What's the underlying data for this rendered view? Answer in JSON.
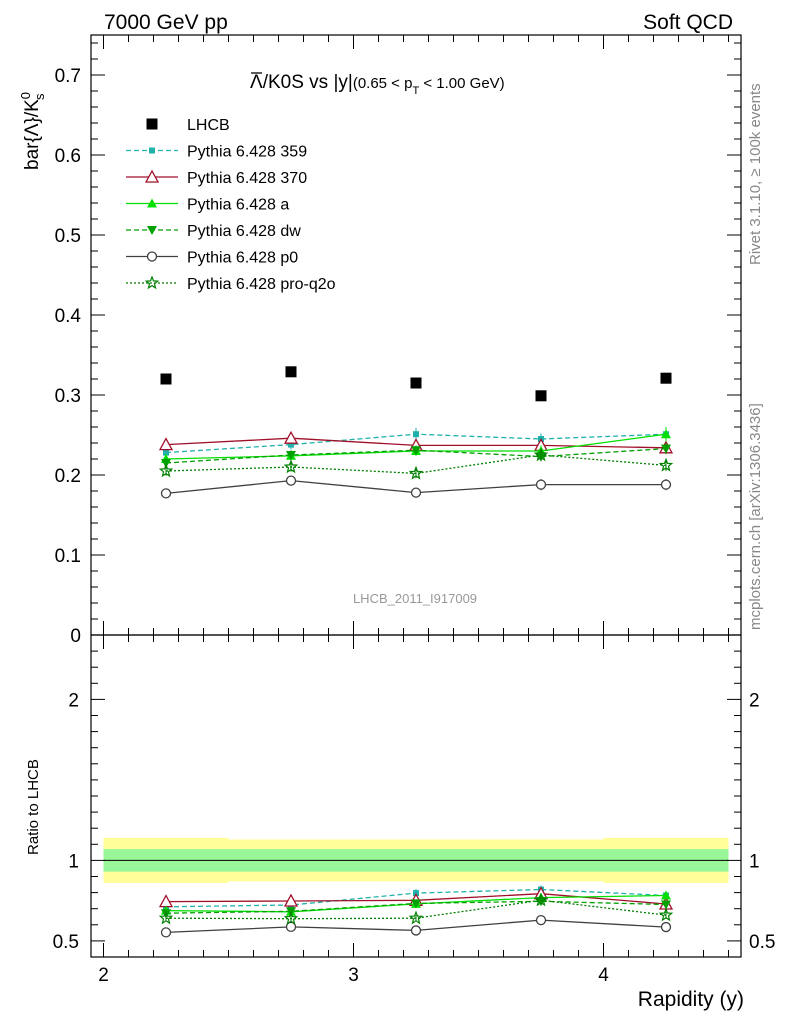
{
  "header": {
    "left": "7000 GeV pp",
    "right": "Soft QCD"
  },
  "side_labels": {
    "rivet": "Rivet 3.1.10, ≥ 100k events",
    "mcplots": "mcplots.cern.ch [arXiv:1306.3436]"
  },
  "chart_data": [
    {
      "type": "line",
      "title": "Λ̅/K0S vs |y|",
      "title_parts": {
        "prefix": "Λ",
        "mid": "/K0S vs |y|",
        "sub_open": "(0.65 < p",
        "sub_T": "T",
        "sub_close": " < 1.00 GeV)"
      },
      "ylabel": "bar{Λ}/K",
      "ylabel_parts": {
        "main": "bar{Λ}/K",
        "sup": "0",
        "sub": "s"
      },
      "watermark": "LHCB_2011_I917009",
      "xlim": [
        1.95,
        4.55
      ],
      "ylim": [
        0,
        0.75
      ],
      "yticks": [
        0,
        0.1,
        0.2,
        0.3,
        0.4,
        0.5,
        0.6,
        0.7
      ],
      "ytick_labels": [
        "0",
        "0.1",
        "0.2",
        "0.3",
        "0.4",
        "0.5",
        "0.6",
        "0.7"
      ],
      "x": [
        2.25,
        2.75,
        3.25,
        3.75,
        4.25
      ],
      "data": {
        "name": "LHCB",
        "y": [
          0.32,
          0.329,
          0.315,
          0.299,
          0.321
        ]
      },
      "series": [
        {
          "name": "Pythia 6.428 359",
          "color": "#20b2aa",
          "marker": "square-small",
          "line": "dashed",
          "y": [
            0.228,
            0.238,
            0.251,
            0.245,
            0.251
          ],
          "err": [
            0.006,
            0.006,
            0.008,
            0.007,
            0.007
          ]
        },
        {
          "name": "Pythia 6.428 370",
          "color": "#a0102a",
          "marker": "triangle-open",
          "line": "solid",
          "y": [
            0.238,
            0.246,
            0.237,
            0.237,
            0.234
          ],
          "err": [
            0.006,
            0.006,
            0.006,
            0.006,
            0.006
          ]
        },
        {
          "name": "Pythia 6.428 a",
          "color": "#00e000",
          "marker": "triangle",
          "line": "solid",
          "y": [
            0.22,
            0.224,
            0.23,
            0.23,
            0.251
          ],
          "err": [
            0.006,
            0.006,
            0.006,
            0.007,
            0.009
          ]
        },
        {
          "name": "Pythia 6.428 dw",
          "color": "#00a000",
          "marker": "triangle-down",
          "line": "dashed",
          "y": [
            0.215,
            0.225,
            0.231,
            0.223,
            0.233
          ],
          "err": [
            0.006,
            0.006,
            0.006,
            0.006,
            0.007
          ]
        },
        {
          "name": "Pythia 6.428 p0",
          "color": "#404040",
          "marker": "circle-open",
          "line": "solid",
          "y": [
            0.177,
            0.193,
            0.178,
            0.188,
            0.188
          ],
          "err": [
            0.006,
            0.006,
            0.006,
            0.007,
            0.007
          ]
        },
        {
          "name": "Pythia 6.428 pro-q2o",
          "color": "#008000",
          "marker": "star",
          "line": "dotted",
          "y": [
            0.205,
            0.21,
            0.202,
            0.225,
            0.212
          ],
          "err": [
            0.006,
            0.006,
            0.006,
            0.007,
            0.007
          ]
        }
      ]
    },
    {
      "type": "line",
      "ylabel": "Ratio to LHCB",
      "xlabel": "Rapidity (y)",
      "xlim": [
        1.95,
        4.55
      ],
      "ylim": [
        0.4,
        2.4
      ],
      "yticks": [
        0.5,
        1,
        2
      ],
      "ytick_labels": [
        "0.5",
        "1",
        "2"
      ],
      "xticks": [
        2,
        3,
        4
      ],
      "xtick_labels": [
        "2",
        "3",
        "4"
      ],
      "bins": [
        [
          2.0,
          2.5
        ],
        [
          2.5,
          3.0
        ],
        [
          3.0,
          3.5
        ],
        [
          3.5,
          4.0
        ],
        [
          4.0,
          4.5
        ]
      ],
      "band_stat": [
        [
          0.93,
          1.07
        ],
        [
          0.93,
          1.07
        ],
        [
          0.93,
          1.07
        ],
        [
          0.93,
          1.07
        ],
        [
          0.93,
          1.07
        ]
      ],
      "band_total": [
        [
          0.86,
          1.14
        ],
        [
          0.87,
          1.13
        ],
        [
          0.87,
          1.13
        ],
        [
          0.87,
          1.13
        ],
        [
          0.86,
          1.14
        ]
      ],
      "x": [
        2.25,
        2.75,
        3.25,
        3.75,
        4.25
      ],
      "series": [
        {
          "name": "Pythia 6.428 359",
          "color": "#20b2aa",
          "marker": "square-small",
          "line": "dashed",
          "y": [
            0.712,
            0.723,
            0.797,
            0.819,
            0.782
          ],
          "err": [
            0.02,
            0.02,
            0.025,
            0.025,
            0.022
          ]
        },
        {
          "name": "Pythia 6.428 370",
          "color": "#a0102a",
          "marker": "triangle-open",
          "line": "solid",
          "y": [
            0.744,
            0.748,
            0.752,
            0.793,
            0.729
          ],
          "err": [
            0.02,
            0.02,
            0.02,
            0.022,
            0.02
          ]
        },
        {
          "name": "Pythia 6.428 a",
          "color": "#00e000",
          "marker": "triangle",
          "line": "solid",
          "y": [
            0.688,
            0.681,
            0.73,
            0.769,
            0.782
          ],
          "err": [
            0.02,
            0.02,
            0.02,
            0.022,
            0.025
          ]
        },
        {
          "name": "Pythia 6.428 dw",
          "color": "#00a000",
          "marker": "triangle-down",
          "line": "dashed",
          "y": [
            0.672,
            0.684,
            0.733,
            0.746,
            0.726
          ],
          "err": [
            0.02,
            0.02,
            0.02,
            0.022,
            0.022
          ]
        },
        {
          "name": "Pythia 6.428 p0",
          "color": "#404040",
          "marker": "circle-open",
          "line": "solid",
          "y": [
            0.553,
            0.587,
            0.565,
            0.629,
            0.586
          ],
          "err": [
            0.02,
            0.02,
            0.02,
            0.022,
            0.022
          ]
        },
        {
          "name": "Pythia 6.428 pro-q2o",
          "color": "#008000",
          "marker": "star",
          "line": "dotted",
          "y": [
            0.641,
            0.638,
            0.641,
            0.753,
            0.66
          ],
          "err": [
            0.02,
            0.02,
            0.02,
            0.022,
            0.022
          ]
        }
      ]
    }
  ]
}
